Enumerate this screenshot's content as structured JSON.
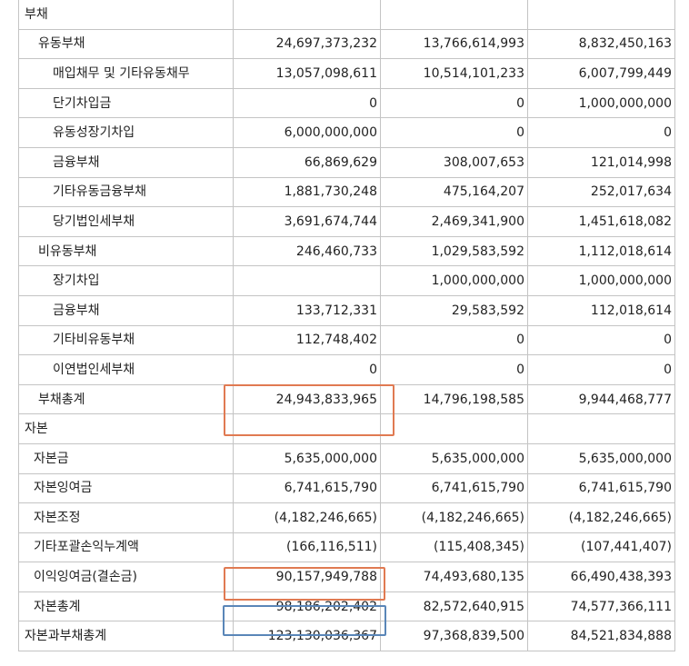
{
  "rows": [
    {
      "label": "부채",
      "level": 0,
      "values": [
        "",
        "",
        ""
      ]
    },
    {
      "label": "유동부채",
      "level": 1,
      "values": [
        "24,697,373,232",
        "13,766,614,993",
        "8,832,450,163"
      ]
    },
    {
      "label": "매입채무 및 기타유동채무",
      "level": 2,
      "values": [
        "13,057,098,611",
        "10,514,101,233",
        "6,007,799,449"
      ]
    },
    {
      "label": "단기차입금",
      "level": 2,
      "values": [
        "0",
        "0",
        "1,000,000,000"
      ]
    },
    {
      "label": "유동성장기차입",
      "level": 2,
      "values": [
        "6,000,000,000",
        "0",
        "0"
      ]
    },
    {
      "label": "금융부채",
      "level": 2,
      "values": [
        "66,869,629",
        "308,007,653",
        "121,014,998"
      ]
    },
    {
      "label": "기타유동금융부채",
      "level": 2,
      "values": [
        "1,881,730,248",
        "475,164,207",
        "252,017,634"
      ]
    },
    {
      "label": "당기법인세부채",
      "level": 2,
      "values": [
        "3,691,674,744",
        "2,469,341,900",
        "1,451,618,082"
      ]
    },
    {
      "label": "비유동부채",
      "level": 1,
      "values": [
        "246,460,733",
        "1,029,583,592",
        "1,112,018,614"
      ]
    },
    {
      "label": "장기차입",
      "level": 2,
      "values": [
        "",
        "1,000,000,000",
        "1,000,000,000"
      ]
    },
    {
      "label": "금융부채",
      "level": 2,
      "values": [
        "133,712,331",
        "29,583,592",
        "112,018,614"
      ]
    },
    {
      "label": "기타비유동부채",
      "level": 2,
      "values": [
        "112,748,402",
        "0",
        "0"
      ]
    },
    {
      "label": "이연법인세부채",
      "level": 2,
      "values": [
        "0",
        "0",
        "0"
      ]
    },
    {
      "label": "부채총계",
      "level": 1,
      "values": [
        "24,943,833,965",
        "14,796,198,585",
        "9,944,468,777"
      ]
    },
    {
      "label": "자본",
      "level": 0,
      "values": [
        "",
        "",
        ""
      ]
    },
    {
      "label": "자본금",
      "level": 1,
      "values": [
        "5,635,000,000",
        "5,635,000,000",
        "5,635,000,000"
      ]
    },
    {
      "label": "자본잉여금",
      "level": 1,
      "values": [
        "6,741,615,790",
        "6,741,615,790",
        "6,741,615,790"
      ]
    },
    {
      "label": "자본조정",
      "level": 1,
      "values": [
        "(4,182,246,665)",
        "(4,182,246,665)",
        "(4,182,246,665)"
      ]
    },
    {
      "label": "기타포괄손익누계액",
      "level": 1,
      "values": [
        "(166,116,511)",
        "(115,408,345)",
        "(107,441,407)"
      ]
    },
    {
      "label": "이익잉여금(결손금)",
      "level": 1,
      "values": [
        "90,157,949,788",
        "74,493,680,135",
        "66,490,438,393"
      ]
    },
    {
      "label": "자본총계",
      "level": 1,
      "values": [
        "98,186,202,402",
        "82,572,640,915",
        "74,577,366,111"
      ]
    },
    {
      "label": "자본과부채총계",
      "level": 0,
      "values": [
        "123,130,036,367",
        "97,368,839,500",
        "84,521,834,888"
      ]
    }
  ],
  "highlights": {
    "liabilities_total_color": "#e07a52",
    "retained_earnings_color": "#e07a52",
    "equity_total_color": "#5a86b8"
  }
}
